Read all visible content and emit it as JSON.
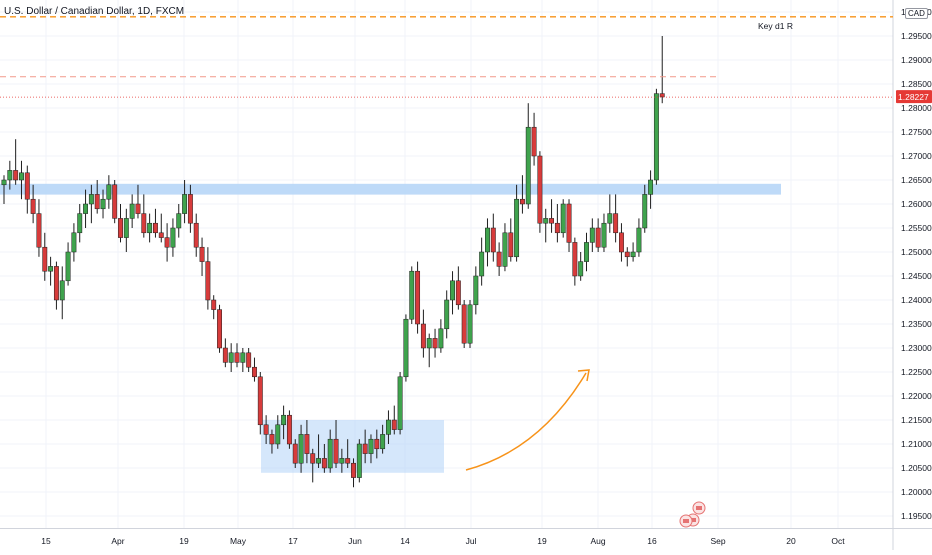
{
  "header": {
    "title": "U.S. Dollar / Canadian Dollar, 1D, FXCM",
    "currency": "CAD"
  },
  "colors": {
    "up": "#26a69a",
    "up_fill": "#3fa34d",
    "down": "#d73b3b",
    "zone": "#b3d4f7",
    "accent": "#f7931a"
  },
  "chart_data": {
    "type": "candlestick",
    "title": "U.S. Dollar / Canadian Dollar, 1D, FXCM",
    "ylim": [
      1.1925,
      1.3025
    ],
    "yticks": [
      "1.30000",
      "1.29500",
      "1.29000",
      "1.28500",
      "1.28000",
      "1.27500",
      "1.27000",
      "1.26500",
      "1.26000",
      "1.25500",
      "1.25000",
      "1.24500",
      "1.24000",
      "1.23500",
      "1.23000",
      "1.22500",
      "1.22000",
      "1.21500",
      "1.21000",
      "1.20500",
      "1.20000",
      "1.19500"
    ],
    "xticks": [
      "15",
      "Apr",
      "19",
      "May",
      "17",
      "Jun",
      "14",
      "Jul",
      "19",
      "Aug",
      "16",
      "Sep",
      "20",
      "Oct"
    ],
    "last_price": "1.28227",
    "annotations": {
      "key_level_label": "Key d1 R",
      "key_level": 1.299,
      "resistance_2": 1.2865,
      "support_zone": [
        1.263,
        1.264
      ],
      "accumulation_box": [
        1.204,
        1.215
      ]
    },
    "candles": [
      [
        1.264,
        1.266,
        1.26,
        1.265
      ],
      [
        1.265,
        1.269,
        1.263,
        1.267
      ],
      [
        1.267,
        1.2735,
        1.264,
        1.265
      ],
      [
        1.265,
        1.269,
        1.261,
        1.2665
      ],
      [
        1.2665,
        1.268,
        1.258,
        1.261
      ],
      [
        1.261,
        1.264,
        1.256,
        1.258
      ],
      [
        1.258,
        1.261,
        1.249,
        1.251
      ],
      [
        1.251,
        1.254,
        1.244,
        1.246
      ],
      [
        1.246,
        1.249,
        1.243,
        1.247
      ],
      [
        1.247,
        1.248,
        1.238,
        1.24
      ],
      [
        1.24,
        1.247,
        1.236,
        1.244
      ],
      [
        1.244,
        1.252,
        1.243,
        1.25
      ],
      [
        1.25,
        1.256,
        1.248,
        1.254
      ],
      [
        1.254,
        1.26,
        1.252,
        1.258
      ],
      [
        1.258,
        1.263,
        1.255,
        1.26
      ],
      [
        1.26,
        1.264,
        1.256,
        1.262
      ],
      [
        1.262,
        1.265,
        1.258,
        1.259
      ],
      [
        1.259,
        1.263,
        1.257,
        1.261
      ],
      [
        1.261,
        1.266,
        1.259,
        1.264
      ],
      [
        1.264,
        1.265,
        1.256,
        1.257
      ],
      [
        1.257,
        1.26,
        1.252,
        1.253
      ],
      [
        1.253,
        1.259,
        1.25,
        1.257
      ],
      [
        1.257,
        1.262,
        1.255,
        1.26
      ],
      [
        1.26,
        1.264,
        1.257,
        1.258
      ],
      [
        1.258,
        1.262,
        1.253,
        1.254
      ],
      [
        1.254,
        1.258,
        1.252,
        1.256
      ],
      [
        1.256,
        1.259,
        1.253,
        1.254
      ],
      [
        1.254,
        1.258,
        1.252,
        1.253
      ],
      [
        1.253,
        1.256,
        1.248,
        1.251
      ],
      [
        1.251,
        1.257,
        1.249,
        1.255
      ],
      [
        1.255,
        1.26,
        1.253,
        1.258
      ],
      [
        1.258,
        1.265,
        1.256,
        1.262
      ],
      [
        1.262,
        1.264,
        1.254,
        1.256
      ],
      [
        1.256,
        1.258,
        1.249,
        1.251
      ],
      [
        1.251,
        1.253,
        1.245,
        1.248
      ],
      [
        1.248,
        1.251,
        1.238,
        1.24
      ],
      [
        1.24,
        1.241,
        1.236,
        1.238
      ],
      [
        1.238,
        1.239,
        1.229,
        1.23
      ],
      [
        1.23,
        1.232,
        1.226,
        1.227
      ],
      [
        1.227,
        1.231,
        1.225,
        1.229
      ],
      [
        1.229,
        1.231,
        1.226,
        1.227
      ],
      [
        1.227,
        1.23,
        1.225,
        1.229
      ],
      [
        1.229,
        1.23,
        1.225,
        1.226
      ],
      [
        1.226,
        1.228,
        1.223,
        1.224
      ],
      [
        1.224,
        1.225,
        1.212,
        1.214
      ],
      [
        1.214,
        1.216,
        1.21,
        1.212
      ],
      [
        1.212,
        1.213,
        1.208,
        1.21
      ],
      [
        1.21,
        1.216,
        1.209,
        1.214
      ],
      [
        1.214,
        1.218,
        1.211,
        1.216
      ],
      [
        1.216,
        1.217,
        1.209,
        1.21
      ],
      [
        1.21,
        1.211,
        1.205,
        1.206
      ],
      [
        1.206,
        1.214,
        1.204,
        1.212
      ],
      [
        1.212,
        1.215,
        1.206,
        1.208
      ],
      [
        1.208,
        1.209,
        1.202,
        1.206
      ],
      [
        1.206,
        1.212,
        1.205,
        1.207
      ],
      [
        1.207,
        1.21,
        1.204,
        1.205
      ],
      [
        1.205,
        1.213,
        1.204,
        1.211
      ],
      [
        1.211,
        1.215,
        1.205,
        1.206
      ],
      [
        1.206,
        1.209,
        1.204,
        1.207
      ],
      [
        1.207,
        1.211,
        1.205,
        1.206
      ],
      [
        1.206,
        1.207,
        1.201,
        1.203
      ],
      [
        1.203,
        1.211,
        1.202,
        1.21
      ],
      [
        1.21,
        1.213,
        1.206,
        1.208
      ],
      [
        1.208,
        1.212,
        1.206,
        1.211
      ],
      [
        1.211,
        1.213,
        1.207,
        1.209
      ],
      [
        1.209,
        1.214,
        1.208,
        1.212
      ],
      [
        1.212,
        1.217,
        1.21,
        1.215
      ],
      [
        1.215,
        1.218,
        1.212,
        1.213
      ],
      [
        1.213,
        1.225,
        1.212,
        1.224
      ],
      [
        1.224,
        1.237,
        1.223,
        1.236
      ],
      [
        1.236,
        1.247,
        1.235,
        1.246
      ],
      [
        1.246,
        1.248,
        1.233,
        1.235
      ],
      [
        1.235,
        1.238,
        1.228,
        1.23
      ],
      [
        1.23,
        1.233,
        1.226,
        1.232
      ],
      [
        1.232,
        1.234,
        1.228,
        1.23
      ],
      [
        1.23,
        1.236,
        1.229,
        1.234
      ],
      [
        1.234,
        1.242,
        1.232,
        1.24
      ],
      [
        1.24,
        1.246,
        1.237,
        1.244
      ],
      [
        1.244,
        1.247,
        1.238,
        1.239
      ],
      [
        1.239,
        1.24,
        1.23,
        1.231
      ],
      [
        1.231,
        1.24,
        1.23,
        1.239
      ],
      [
        1.239,
        1.247,
        1.237,
        1.245
      ],
      [
        1.245,
        1.253,
        1.243,
        1.25
      ],
      [
        1.25,
        1.257,
        1.247,
        1.255
      ],
      [
        1.255,
        1.258,
        1.248,
        1.25
      ],
      [
        1.25,
        1.252,
        1.245,
        1.247
      ],
      [
        1.247,
        1.256,
        1.246,
        1.254
      ],
      [
        1.254,
        1.257,
        1.248,
        1.249
      ],
      [
        1.249,
        1.264,
        1.248,
        1.261
      ],
      [
        1.261,
        1.266,
        1.258,
        1.26
      ],
      [
        1.26,
        1.281,
        1.259,
        1.276
      ],
      [
        1.276,
        1.279,
        1.268,
        1.27
      ],
      [
        1.27,
        1.271,
        1.254,
        1.256
      ],
      [
        1.256,
        1.259,
        1.252,
        1.257
      ],
      [
        1.257,
        1.261,
        1.254,
        1.256
      ],
      [
        1.256,
        1.26,
        1.252,
        1.254
      ],
      [
        1.254,
        1.261,
        1.253,
        1.26
      ],
      [
        1.26,
        1.261,
        1.25,
        1.252
      ],
      [
        1.252,
        1.253,
        1.243,
        1.245
      ],
      [
        1.245,
        1.25,
        1.244,
        1.248
      ],
      [
        1.248,
        1.254,
        1.246,
        1.252
      ],
      [
        1.252,
        1.257,
        1.25,
        1.255
      ],
      [
        1.255,
        1.257,
        1.25,
        1.251
      ],
      [
        1.251,
        1.258,
        1.25,
        1.256
      ],
      [
        1.256,
        1.262,
        1.254,
        1.258
      ],
      [
        1.258,
        1.262,
        1.252,
        1.254
      ],
      [
        1.254,
        1.256,
        1.248,
        1.25
      ],
      [
        1.25,
        1.251,
        1.247,
        1.249
      ],
      [
        1.249,
        1.252,
        1.248,
        1.25
      ],
      [
        1.25,
        1.257,
        1.249,
        1.255
      ],
      [
        1.255,
        1.264,
        1.254,
        1.262
      ],
      [
        1.262,
        1.267,
        1.259,
        1.265
      ],
      [
        1.265,
        1.284,
        1.264,
        1.283
      ],
      [
        1.283,
        1.295,
        1.281,
        1.2823
      ]
    ]
  }
}
